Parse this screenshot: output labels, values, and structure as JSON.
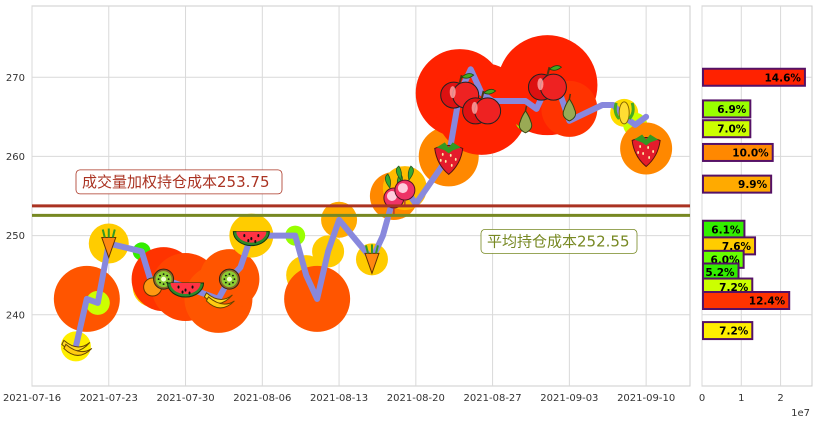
{
  "chart_data": [
    {
      "type": "line",
      "x_ticks": [
        "2021-07-16",
        "2021-07-23",
        "2021-07-30",
        "2021-08-06",
        "2021-08-13",
        "2021-08-20",
        "2021-08-27",
        "2021-09-03",
        "2021-09-10"
      ],
      "y_ticks": [
        240,
        250,
        260,
        270
      ],
      "xlim": [
        "2021-07-16",
        "2021-09-14"
      ],
      "ylim": [
        231,
        279
      ],
      "grid": true,
      "series": [
        {
          "points": [
            [
              "2021-07-20",
              236.0
            ],
            [
              "2021-07-21",
              242.0
            ],
            [
              "2021-07-22",
              241.5
            ],
            [
              "2021-07-23",
              249.0
            ],
            [
              "2021-07-26",
              248.0
            ],
            [
              "2021-07-27",
              243.5
            ],
            [
              "2021-07-28",
              244.5
            ],
            [
              "2021-07-30",
              243.5
            ],
            [
              "2021-08-02",
              242.0
            ],
            [
              "2021-08-03",
              244.5
            ],
            [
              "2021-08-04",
              246.0
            ],
            [
              "2021-08-05",
              250.0
            ],
            [
              "2021-08-06",
              250.0
            ],
            [
              "2021-08-09",
              250.0
            ],
            [
              "2021-08-10",
              245.0
            ],
            [
              "2021-08-11",
              242.0
            ],
            [
              "2021-08-12",
              248.0
            ],
            [
              "2021-08-13",
              252.0
            ],
            [
              "2021-08-16",
              247.0
            ],
            [
              "2021-08-17",
              250.0
            ],
            [
              "2021-08-18",
              255.0
            ],
            [
              "2021-08-19",
              256.0
            ],
            [
              "2021-08-20",
              254.0
            ],
            [
              "2021-08-23",
              260.0
            ],
            [
              "2021-08-24",
              268.0
            ],
            [
              "2021-08-25",
              271.0
            ],
            [
              "2021-08-26",
              268.0
            ],
            [
              "2021-08-27",
              267.0
            ],
            [
              "2021-08-30",
              267.0
            ],
            [
              "2021-08-31",
              266.0
            ],
            [
              "2021-09-01",
              269.0
            ],
            [
              "2021-09-02",
              268.5
            ],
            [
              "2021-09-03",
              264.5
            ],
            [
              "2021-09-06",
              266.5
            ],
            [
              "2021-09-07",
              266.5
            ],
            [
              "2021-09-08",
              265.0
            ],
            [
              "2021-09-09",
              264.0
            ],
            [
              "2021-09-10",
              265.0
            ]
          ]
        }
      ],
      "markers": [
        {
          "x": "2021-07-20",
          "y": 236.0,
          "icon": "banana",
          "r": 15,
          "color": "#ffee00"
        },
        {
          "x": "2021-07-21",
          "y": 242.0,
          "icon": "dot",
          "r": 33,
          "color": "#ff5500"
        },
        {
          "x": "2021-07-22",
          "y": 241.5,
          "icon": "dot",
          "r": 12,
          "color": "#ccff00"
        },
        {
          "x": "2021-07-23",
          "y": 249.0,
          "icon": "carrot",
          "r": 20,
          "color": "#ffcc00"
        },
        {
          "x": "2021-07-26",
          "y": 248.0,
          "icon": "dot",
          "r": 9,
          "color": "#33ee00"
        },
        {
          "x": "2021-07-27",
          "y": 243.5,
          "icon": "orange",
          "r": 20,
          "color": "#ffcc00"
        },
        {
          "x": "2021-07-28",
          "y": 244.5,
          "icon": "kiwi",
          "r": 32,
          "color": "#ff3300"
        },
        {
          "x": "2021-07-30",
          "y": 243.5,
          "icon": "watermelon",
          "r": 34,
          "color": "#ff4400"
        },
        {
          "x": "2021-08-02",
          "y": 242.0,
          "icon": "banana",
          "r": 34,
          "color": "#ff5500"
        },
        {
          "x": "2021-08-03",
          "y": 244.5,
          "icon": "kiwi",
          "r": 30,
          "color": "#ff5500"
        },
        {
          "x": "2021-08-05",
          "y": 250.0,
          "icon": "watermelon",
          "r": 22,
          "color": "#ffcc00"
        },
        {
          "x": "2021-08-09",
          "y": 250.0,
          "icon": "dot",
          "r": 10,
          "color": "#99ff00"
        },
        {
          "x": "2021-08-10",
          "y": 245.0,
          "icon": "dot",
          "r": 20,
          "color": "#ffcc00"
        },
        {
          "x": "2021-08-11",
          "y": 242.0,
          "icon": "dot",
          "r": 33,
          "color": "#ff5500"
        },
        {
          "x": "2021-08-12",
          "y": 248.0,
          "icon": "dot",
          "r": 16,
          "color": "#ffcc00"
        },
        {
          "x": "2021-08-13",
          "y": 252.0,
          "icon": "dot",
          "r": 18,
          "color": "#ffaa00"
        },
        {
          "x": "2021-08-16",
          "y": 247.0,
          "icon": "carrot",
          "r": 16,
          "color": "#ffcc00"
        },
        {
          "x": "2021-08-18",
          "y": 255.0,
          "icon": "radish",
          "r": 24,
          "color": "#ff8800"
        },
        {
          "x": "2021-08-19",
          "y": 256.0,
          "icon": "radish",
          "r": 22,
          "color": "#ffbb00"
        },
        {
          "x": "2021-08-23",
          "y": 260.0,
          "icon": "strawberry",
          "r": 30,
          "color": "#ff8800"
        },
        {
          "x": "2021-08-24",
          "y": 268.0,
          "icon": "apple",
          "r": 44,
          "color": "#ff2200"
        },
        {
          "x": "2021-08-26",
          "y": 266.0,
          "icon": "apple",
          "r": 46,
          "color": "#ff2200"
        },
        {
          "x": "2021-08-30",
          "y": 264.5,
          "icon": "pear",
          "r": 10,
          "color": "#99ff00"
        },
        {
          "x": "2021-09-01",
          "y": 269.0,
          "icon": "apple",
          "r": 50,
          "color": "#ff2200"
        },
        {
          "x": "2021-09-03",
          "y": 266.0,
          "icon": "pear",
          "r": 28,
          "color": "#ff3300"
        },
        {
          "x": "2021-09-08",
          "y": 265.5,
          "icon": "corn",
          "r": 14,
          "color": "#ffdd00"
        },
        {
          "x": "2021-09-09",
          "y": 264.0,
          "icon": "dot",
          "r": 12,
          "color": "#ccff00"
        },
        {
          "x": "2021-09-10",
          "y": 261.0,
          "icon": "strawberry",
          "r": 26,
          "color": "#ff8800"
        }
      ],
      "reference_lines": [
        {
          "y": 253.75,
          "label": "成交量加权持仓成本253.75",
          "color": "#aa3322"
        },
        {
          "y": 252.55,
          "label": "平均持仓成本252.55",
          "color": "#778822"
        }
      ],
      "line_color": "#8888dd"
    },
    {
      "type": "bar",
      "orientation": "horizontal",
      "x_ticks": [
        "0",
        "1",
        "2"
      ],
      "x_multiplier_label": "1e7",
      "xlim": [
        0,
        2.8
      ],
      "bars": [
        {
          "y": 270.0,
          "value": 2.62,
          "label": "14.6%",
          "color": "#ff2200"
        },
        {
          "y": 266.0,
          "value": 1.23,
          "label": "6.9%",
          "color": "#99ff00"
        },
        {
          "y": 263.5,
          "value": 1.23,
          "label": "7.0%",
          "color": "#ccff00"
        },
        {
          "y": 260.5,
          "value": 1.8,
          "label": "10.0%",
          "color": "#ff8800"
        },
        {
          "y": 256.5,
          "value": 1.76,
          "label": "9.9%",
          "color": "#ffaa00"
        },
        {
          "y": 250.8,
          "value": 1.08,
          "label": "6.1%",
          "color": "#33ee00"
        },
        {
          "y": 248.7,
          "value": 1.35,
          "label": "7.6%",
          "color": "#ffcc00"
        },
        {
          "y": 247.0,
          "value": 1.06,
          "label": "6.0%",
          "color": "#66ff00"
        },
        {
          "y": 245.4,
          "value": 0.93,
          "label": "5.2%",
          "color": "#33ee00"
        },
        {
          "y": 243.5,
          "value": 1.28,
          "label": "7.2%",
          "color": "#ccff00"
        },
        {
          "y": 241.8,
          "value": 2.22,
          "label": "12.4%",
          "color": "#ff3300"
        },
        {
          "y": 238.0,
          "value": 1.28,
          "label": "7.2%",
          "color": "#ffee00"
        }
      ]
    }
  ]
}
